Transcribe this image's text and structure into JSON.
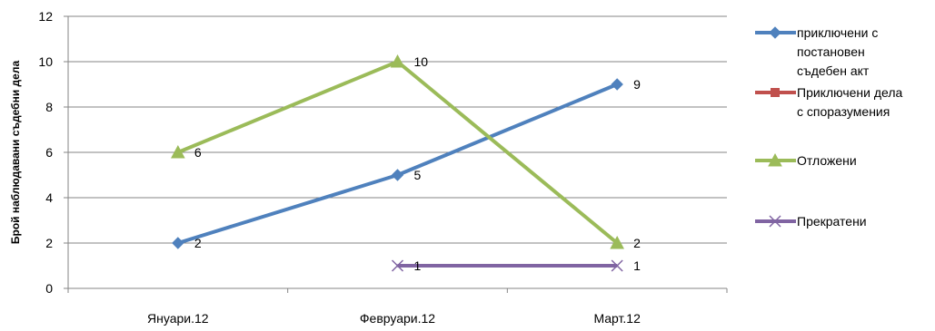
{
  "chart_data": {
    "type": "line",
    "title": "",
    "xlabel": "",
    "ylabel": "Брой наблюдавани съдебни дела",
    "categories": [
      "Януари.12",
      "Февруари.12",
      "Март.12"
    ],
    "ylim": [
      0,
      12
    ],
    "yticks": [
      0,
      2,
      4,
      6,
      8,
      10,
      12
    ],
    "grid": "horizontal",
    "legend_position": "right",
    "series": [
      {
        "name": "приключени с постановен съдебен акт",
        "legend_lines": [
          "приключени с",
          "постановен",
          "съдебен акт"
        ],
        "values": [
          2,
          5,
          9
        ],
        "color": "#4F81BD",
        "marker": "diamond"
      },
      {
        "name": "Приключени дела с споразумения",
        "legend_lines": [
          "Приключени дела",
          "с споразумения"
        ],
        "values": [
          null,
          null,
          null
        ],
        "color": "#C0504D",
        "marker": "square"
      },
      {
        "name": "Отложени",
        "legend_lines": [
          "Отложени"
        ],
        "values": [
          6,
          10,
          2
        ],
        "color": "#9BBB59",
        "marker": "triangle"
      },
      {
        "name": "Прекратени",
        "legend_lines": [
          "Прекратени"
        ],
        "values": [
          null,
          1,
          1
        ],
        "color": "#8064A2",
        "marker": "x"
      }
    ]
  }
}
